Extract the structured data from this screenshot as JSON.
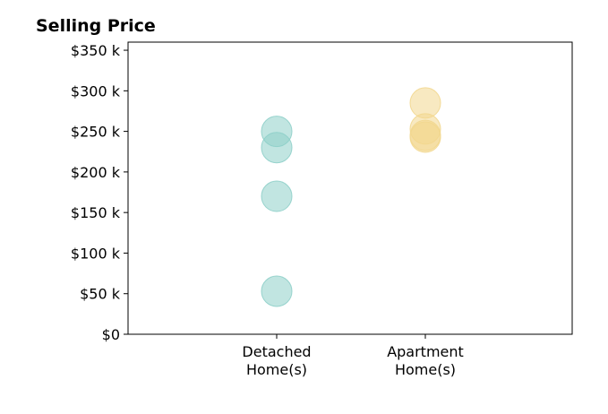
{
  "chart_data": {
    "type": "scatter",
    "title": "Selling Price",
    "xlabel": "",
    "ylabel": "",
    "categories": [
      [
        "Detached",
        "Home(s)"
      ],
      [
        "Apartment",
        "Home(s)"
      ]
    ],
    "ylim": [
      0,
      360000
    ],
    "y_ticks": [
      0,
      50000,
      100000,
      150000,
      200000,
      250000,
      300000,
      350000
    ],
    "y_tick_labels": [
      "$0",
      "$50 k",
      "$100 k",
      "$150 k",
      "$200 k",
      "$250 k",
      "$300 k",
      "$350 k"
    ],
    "grid": false,
    "series": [
      {
        "category": "Detached Home(s)",
        "color": "#8ecfc9",
        "values": [
          250000,
          230000,
          170000,
          53000
        ]
      },
      {
        "category": "Apartment Home(s)",
        "color": "#f2d78e",
        "values": [
          285000,
          253000,
          245000,
          243000
        ]
      }
    ]
  }
}
